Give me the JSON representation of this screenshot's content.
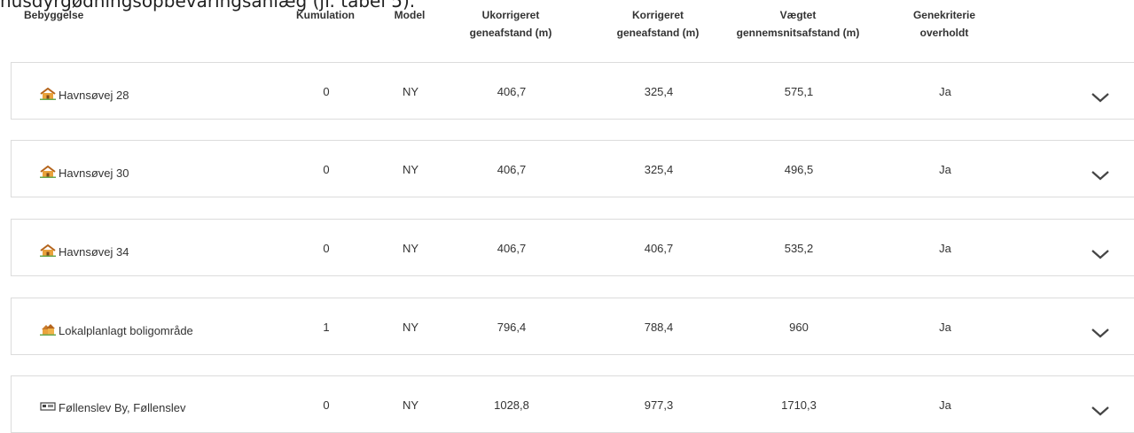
{
  "intro": "husdyrgødningsopbevaringsanlæg (jf. tabel 5).",
  "table": {
    "columns": [
      "Bebyggelse",
      "Kumulation",
      "Model",
      "Ukorrigeret geneafstand (m)",
      "Korrigeret geneafstand (m)",
      "Vægtet gennemsnitsafstand (m)",
      "Genekriterie overholdt"
    ],
    "rows": [
      [
        "Havnsøvej 28",
        "0",
        "NY",
        "406,7",
        "325,4",
        "575,1",
        "Ja"
      ],
      [
        "Havnsøvej 30",
        "0",
        "NY",
        "406,7",
        "325,4",
        "496,5",
        "Ja"
      ],
      [
        "Havnsøvej 34",
        "0",
        "NY",
        "406,7",
        "406,7",
        "535,2",
        "Ja"
      ],
      [
        "Lokalplanlagt boligområde",
        "1",
        "NY",
        "796,4",
        "788,4",
        "960",
        "Ja"
      ],
      [
        "Føllenslev By, Føllenslev",
        "0",
        "NY",
        "1028,8",
        "977,3",
        "1710,3",
        "Ja"
      ]
    ]
  }
}
